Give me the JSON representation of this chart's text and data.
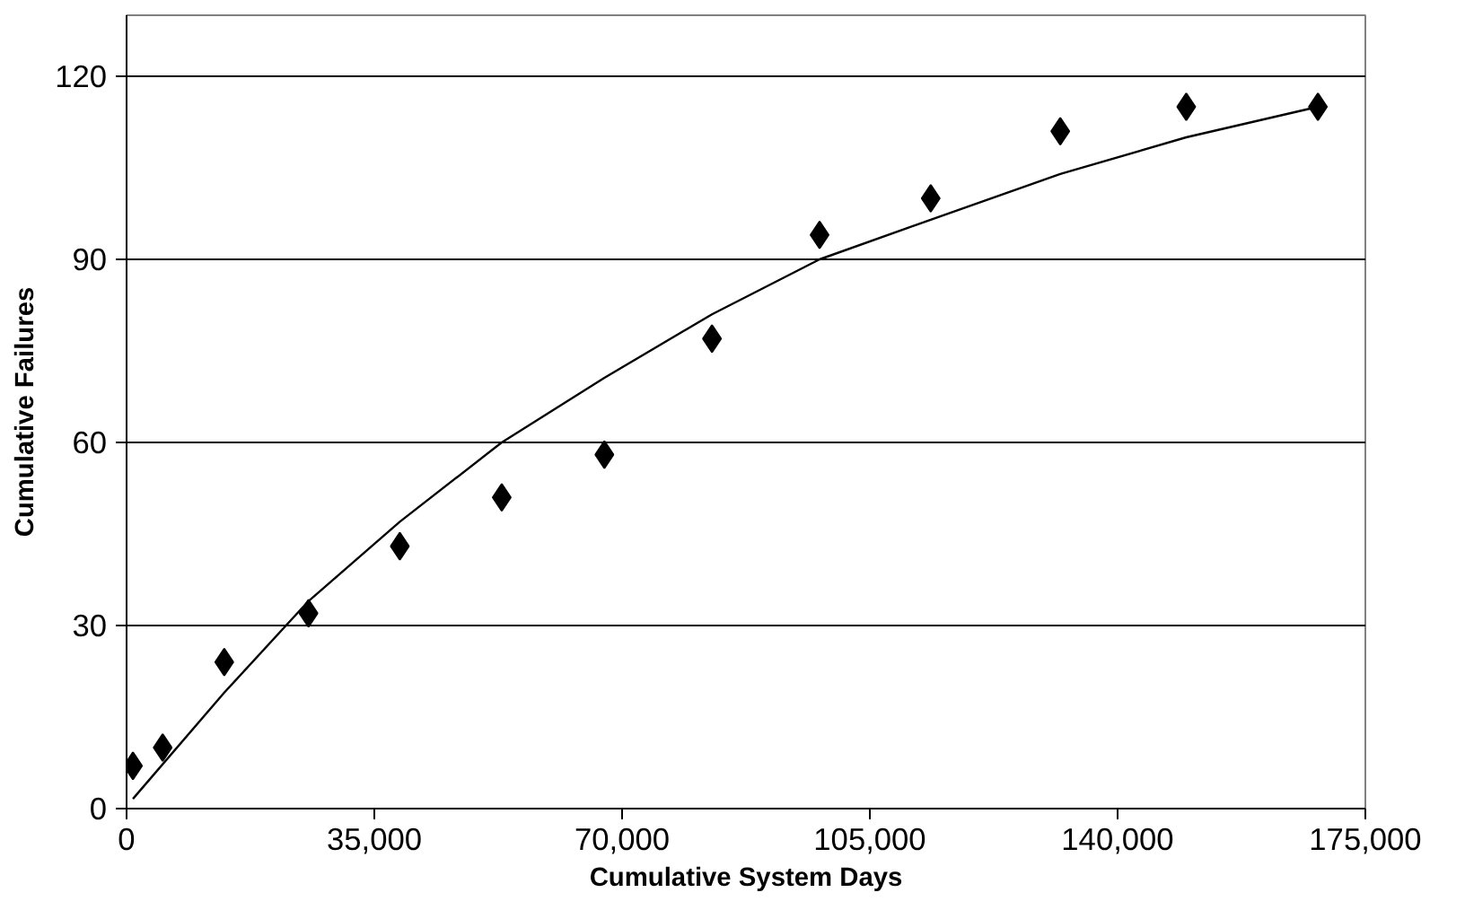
{
  "chart_data": {
    "type": "scatter",
    "xlabel": "Cumulative System Days",
    "ylabel": "Cumulative Failures",
    "xlim": [
      0,
      175000
    ],
    "ylim": [
      0,
      130
    ],
    "xticks": [
      {
        "value": 0,
        "label": "0"
      },
      {
        "value": 35000,
        "label": "35,000"
      },
      {
        "value": 70000,
        "label": "70,000"
      },
      {
        "value": 105000,
        "label": "105,000"
      },
      {
        "value": 140000,
        "label": "140,000"
      },
      {
        "value": 175000,
        "label": "175,000"
      }
    ],
    "yticks": [
      0,
      30,
      60,
      90,
      120
    ],
    "grid": "y",
    "series": [
      {
        "marker": "diamond",
        "color": "#000000",
        "x": [
          900,
          5100,
          13800,
          25700,
          38600,
          53000,
          67500,
          82700,
          97900,
          113600,
          131900,
          149700,
          168300
        ],
        "values": [
          7,
          10,
          24,
          32,
          43,
          51,
          58,
          77,
          94,
          100,
          111,
          115,
          115
        ]
      },
      {
        "type": "line",
        "marker": "none",
        "line_style": "solid",
        "color": "#000000",
        "x": [
          900,
          13800,
          25700,
          38600,
          53000,
          67500,
          82700,
          97900,
          113600,
          131900,
          149700,
          168300
        ],
        "values": [
          1.6,
          19,
          34,
          47,
          60,
          70.6,
          81,
          90,
          96.5,
          104,
          110,
          115
        ]
      }
    ]
  }
}
